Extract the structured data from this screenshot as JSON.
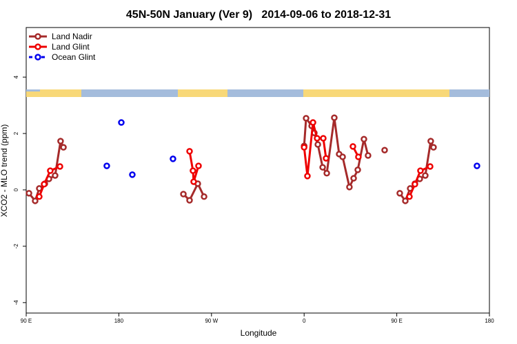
{
  "chart_data": {
    "type": "line",
    "title": "45N-50N January (Ver 9)   2014-09-06 to 2018-12-31",
    "x_label": "Longitude",
    "y_label": "XCO2 - MLO trend (ppm)",
    "xlim": [
      -270,
      180
    ],
    "xticks": [
      {
        "value": -270,
        "label": "90 E"
      },
      {
        "value": -180,
        "label": "180"
      },
      {
        "value": -90,
        "label": "90 W"
      },
      0,
      {
        "value": 90,
        "label": "90 E"
      },
      180
    ],
    "ylim": [
      -4.37,
      5.76
    ],
    "yticks": [
      -4,
      -2,
      0,
      2,
      4
    ],
    "legend": "top-left",
    "series": [
      {
        "name": "Land Nadir",
        "color": "#a52a2a",
        "lines": true,
        "x": [
          -267.3,
          -261.3,
          -257.3,
          -251.9,
          -247.9,
          -241.9,
          -236.6,
          -233.8,
          null,
          -117.3,
          -111.3,
          -103.3,
          -97.2,
          null,
          0,
          1.9,
          7.3,
          9.9,
          13.3,
          18.0,
          22.0,
          29.3,
          34.0,
          37.4,
          44.0,
          48.1,
          52.1,
          58.1,
          62.1,
          null,
          78.2,
          null,
          92.9,
          98.3,
          103.0,
          107.6,
          112.3,
          117.7,
          123.0,
          125.7
        ],
        "values": [
          -0.12,
          -0.39,
          0.05,
          0.22,
          0.39,
          0.51,
          1.73,
          1.51,
          null,
          -0.15,
          -0.37,
          0.22,
          -0.24,
          null,
          1.56,
          2.54,
          2.27,
          2.02,
          1.61,
          0.8,
          0.59,
          2.56,
          1.27,
          1.17,
          0.1,
          0.41,
          0.71,
          1.8,
          1.22,
          null,
          1.41,
          null,
          -0.12,
          -0.39,
          0.05,
          0.22,
          0.39,
          0.51,
          1.73,
          1.51
        ]
      },
      {
        "name": "Land Glint",
        "color": "#ee0000",
        "lines": true,
        "x": [
          -257.3,
          -252.6,
          -246.6,
          -237.2,
          null,
          -111.3,
          -108.0,
          -107.3,
          -102.6,
          null,
          0,
          3.2,
          8.6,
          12.6,
          18.6,
          21.3,
          null,
          47.4,
          52.7,
          null,
          102.3,
          107.6,
          113.0,
          122.4
        ],
        "values": [
          -0.24,
          0.2,
          0.68,
          0.83,
          null,
          1.37,
          0.68,
          0.29,
          0.85,
          null,
          1.51,
          0.49,
          2.39,
          1.83,
          1.83,
          1.12,
          null,
          1.54,
          1.17,
          null,
          -0.24,
          0.2,
          0.68,
          0.83
        ]
      },
      {
        "name": "Ocean Glint",
        "color": "#0000ee",
        "lines": false,
        "x": [
          -191.7,
          -177.6,
          -166.9,
          -127.4,
          167.9
        ],
        "values": [
          0.85,
          2.39,
          0.54,
          1.1,
          0.85
        ]
      }
    ]
  }
}
